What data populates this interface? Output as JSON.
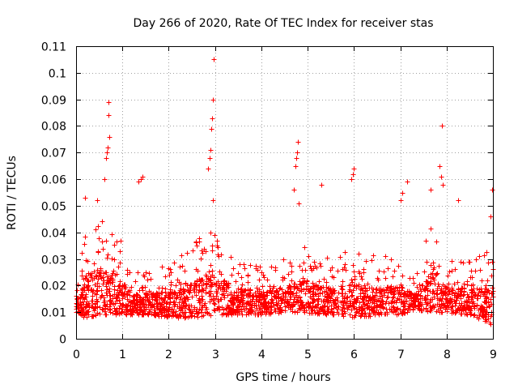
{
  "chart_data": {
    "type": "scatter",
    "title": "Day 266 of 2020, Rate Of TEC Index for receiver stas",
    "xlabel": "GPS time / hours",
    "ylabel": "ROTI / TECUs",
    "xlim": [
      0,
      9
    ],
    "ylim": [
      0,
      0.11
    ],
    "x_ticks": [
      0,
      1,
      2,
      3,
      4,
      5,
      6,
      7,
      8,
      9
    ],
    "x_tick_labels": [
      "0",
      "1",
      "2",
      "3",
      "4",
      "5",
      "6",
      "7",
      "8",
      "9"
    ],
    "y_ticks": [
      0,
      0.01,
      0.02,
      0.03,
      0.04,
      0.05,
      0.06,
      0.07,
      0.08,
      0.09,
      0.1,
      0.11
    ],
    "y_tick_labels": [
      "0",
      "0.01",
      "0.02",
      "0.03",
      "0.04",
      "0.05",
      "0.06",
      "0.07",
      "0.08",
      "0.09",
      "0.1",
      "0.11"
    ],
    "grid": true,
    "marker": "+",
    "color": "#ff0000",
    "series": [
      {
        "name": "stas",
        "envelope": [
          {
            "x": 0.0,
            "high": 0.022,
            "low": 0.009
          },
          {
            "x": 0.2,
            "high": 0.04,
            "low": 0.008
          },
          {
            "x": 0.5,
            "high": 0.045,
            "low": 0.009
          },
          {
            "x": 0.9,
            "high": 0.04,
            "low": 0.009
          },
          {
            "x": 1.2,
            "high": 0.025,
            "low": 0.009
          },
          {
            "x": 1.6,
            "high": 0.027,
            "low": 0.009
          },
          {
            "x": 2.0,
            "high": 0.028,
            "low": 0.008
          },
          {
            "x": 2.5,
            "high": 0.035,
            "low": 0.008
          },
          {
            "x": 2.95,
            "high": 0.045,
            "low": 0.009
          },
          {
            "x": 3.4,
            "high": 0.03,
            "low": 0.009
          },
          {
            "x": 4.0,
            "high": 0.028,
            "low": 0.009
          },
          {
            "x": 4.5,
            "high": 0.03,
            "low": 0.01
          },
          {
            "x": 4.9,
            "high": 0.035,
            "low": 0.01
          },
          {
            "x": 5.5,
            "high": 0.03,
            "low": 0.009
          },
          {
            "x": 6.0,
            "high": 0.035,
            "low": 0.008
          },
          {
            "x": 6.6,
            "high": 0.03,
            "low": 0.009
          },
          {
            "x": 7.0,
            "high": 0.035,
            "low": 0.009
          },
          {
            "x": 7.3,
            "high": 0.022,
            "low": 0.011
          },
          {
            "x": 7.7,
            "high": 0.045,
            "low": 0.01
          },
          {
            "x": 8.0,
            "high": 0.03,
            "low": 0.01
          },
          {
            "x": 8.5,
            "high": 0.03,
            "low": 0.009
          },
          {
            "x": 9.0,
            "high": 0.035,
            "low": 0.005
          }
        ],
        "outliers": [
          {
            "x": 0.62,
            "y": 0.06
          },
          {
            "x": 0.64,
            "y": 0.068
          },
          {
            "x": 0.66,
            "y": 0.07
          },
          {
            "x": 0.68,
            "y": 0.072
          },
          {
            "x": 0.7,
            "y": 0.084
          },
          {
            "x": 0.7,
            "y": 0.089
          },
          {
            "x": 0.72,
            "y": 0.076
          },
          {
            "x": 0.45,
            "y": 0.052
          },
          {
            "x": 0.2,
            "y": 0.053
          },
          {
            "x": 1.35,
            "y": 0.059
          },
          {
            "x": 1.4,
            "y": 0.06
          },
          {
            "x": 1.43,
            "y": 0.061
          },
          {
            "x": 2.85,
            "y": 0.064
          },
          {
            "x": 2.88,
            "y": 0.068
          },
          {
            "x": 2.9,
            "y": 0.071
          },
          {
            "x": 2.92,
            "y": 0.079
          },
          {
            "x": 2.94,
            "y": 0.083
          },
          {
            "x": 2.95,
            "y": 0.09
          },
          {
            "x": 2.97,
            "y": 0.105
          },
          {
            "x": 2.96,
            "y": 0.052
          },
          {
            "x": 4.7,
            "y": 0.056
          },
          {
            "x": 4.73,
            "y": 0.065
          },
          {
            "x": 4.75,
            "y": 0.068
          },
          {
            "x": 4.77,
            "y": 0.07
          },
          {
            "x": 4.78,
            "y": 0.074
          },
          {
            "x": 4.8,
            "y": 0.051
          },
          {
            "x": 5.3,
            "y": 0.058
          },
          {
            "x": 5.95,
            "y": 0.06
          },
          {
            "x": 5.98,
            "y": 0.062
          },
          {
            "x": 6.0,
            "y": 0.064
          },
          {
            "x": 7.15,
            "y": 0.059
          },
          {
            "x": 7.05,
            "y": 0.055
          },
          {
            "x": 7.0,
            "y": 0.052
          },
          {
            "x": 7.65,
            "y": 0.056
          },
          {
            "x": 7.85,
            "y": 0.065
          },
          {
            "x": 7.88,
            "y": 0.061
          },
          {
            "x": 7.9,
            "y": 0.08
          },
          {
            "x": 7.92,
            "y": 0.058
          },
          {
            "x": 8.25,
            "y": 0.052
          },
          {
            "x": 8.98,
            "y": 0.056
          },
          {
            "x": 8.95,
            "y": 0.046
          }
        ]
      }
    ]
  }
}
